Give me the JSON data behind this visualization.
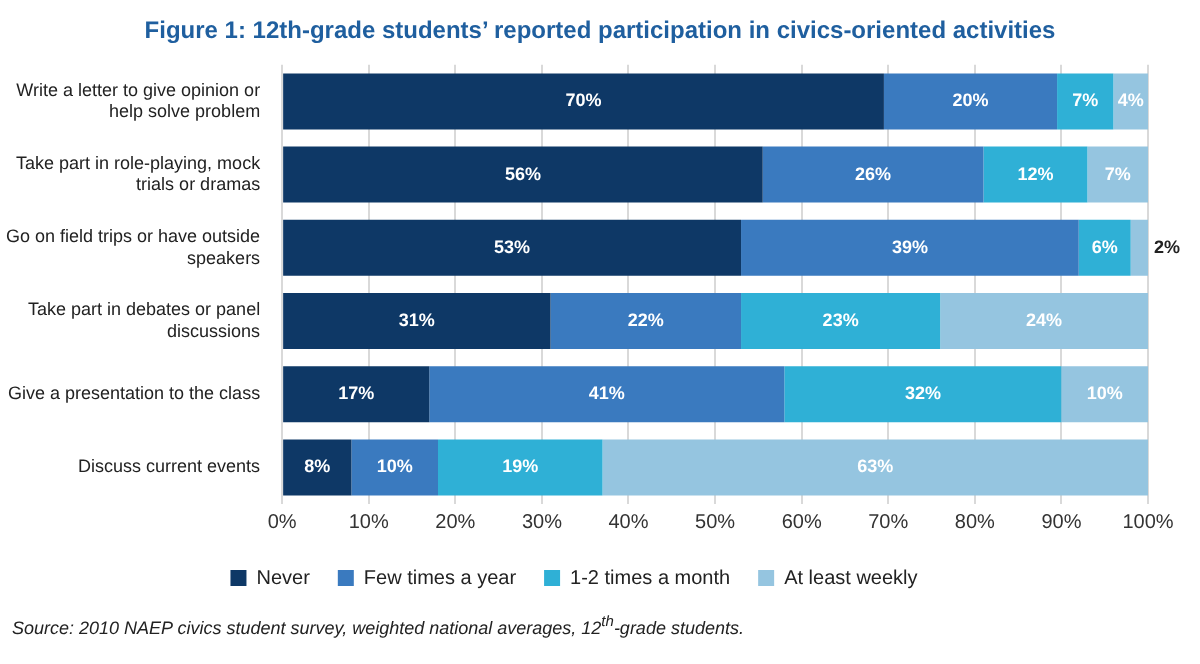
{
  "chart_data": {
    "type": "bar",
    "orientation": "horizontal",
    "stacked": true,
    "title": "Figure 1: 12th-grade students’ reported participation in civics-oriented activities",
    "categories": [
      "Write a letter to give opinion or help solve problem",
      "Take part in role-playing, mock trials or dramas",
      "Go on field trips or have outside speakers",
      "Take part in debates or panel discussions",
      "Give a presentation to the class",
      "Discuss current events"
    ],
    "series": [
      {
        "name": "Never",
        "color": "#0e3866",
        "values": [
          69.5,
          55.5,
          53,
          31,
          17,
          8
        ],
        "value_labels": [
          "70%",
          "56%",
          "53%",
          "31%",
          "17%",
          "8%"
        ]
      },
      {
        "name": "Few times a year",
        "color": "#3a7abf",
        "values": [
          20,
          25.5,
          39,
          22,
          41,
          10
        ],
        "value_labels": [
          "20%",
          "26%",
          "39%",
          "22%",
          "41%",
          "10%"
        ]
      },
      {
        "name": "1-2 times a month",
        "color": "#2fb0d6",
        "values": [
          6.5,
          12,
          6,
          23,
          32,
          19
        ],
        "value_labels": [
          "7%",
          "12%",
          "6%",
          "23%",
          "32%",
          "19%"
        ]
      },
      {
        "name": "At least weekly",
        "color": "#95c5e0",
        "values": [
          4,
          7,
          2,
          24,
          10,
          63
        ],
        "value_labels": [
          "4%",
          "7%",
          "2%",
          "24%",
          "10%",
          "63%"
        ]
      }
    ],
    "xlim": [
      0,
      100
    ],
    "xticks": [
      {
        "value": 0,
        "label": "0%"
      },
      {
        "value": 10,
        "label": "10%"
      },
      {
        "value": 20,
        "label": "20%"
      },
      {
        "value": 30,
        "label": "30%"
      },
      {
        "value": 40,
        "label": "40%"
      },
      {
        "value": 50,
        "label": "50%"
      },
      {
        "value": 60,
        "label": "60%"
      },
      {
        "value": 70,
        "label": "70%"
      },
      {
        "value": 80,
        "label": "80%"
      },
      {
        "value": 90,
        "label": "90%"
      },
      {
        "value": 100,
        "label": "100%"
      }
    ],
    "grid": "x",
    "legend": "bottom",
    "annotations": [
      "Source: 2010 NAEP civics student survey, weighted national averages, 12$^{th}$-grade students."
    ]
  }
}
